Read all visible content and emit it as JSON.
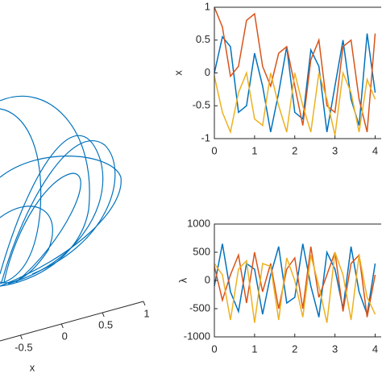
{
  "chart_data": [
    {
      "type": "line3d",
      "xlabel": "x",
      "xlim": [
        -0.75,
        1
      ],
      "xticks": [
        -0.5,
        0,
        0.5,
        1
      ]
    },
    {
      "type": "line",
      "ylabel": "x",
      "x": [
        0,
        0.2,
        0.4,
        0.6,
        0.8,
        1.0,
        1.2,
        1.4,
        1.6,
        1.8,
        2.0,
        2.2,
        2.4,
        2.6,
        2.8,
        3.0,
        3.2,
        3.4,
        3.6,
        3.8,
        4.0
      ],
      "xlim": [
        0,
        4.15
      ],
      "xticks": [
        0,
        1,
        2,
        3,
        4
      ],
      "ylim": [
        -1,
        1
      ],
      "yticks": [
        -1,
        -0.5,
        0,
        0.5,
        1
      ],
      "series": [
        {
          "color": "#0072bd",
          "values": [
            0,
            0.55,
            0.4,
            -0.6,
            -0.5,
            0.3,
            -0.2,
            -0.9,
            -0.3,
            0.4,
            -0.6,
            -0.7,
            0.35,
            0.1,
            -0.9,
            -0.2,
            0.5,
            -0.4,
            -0.8,
            0.6,
            -0.3
          ]
        },
        {
          "color": "#d95319",
          "values": [
            1,
            0.7,
            -0.05,
            0.1,
            0.8,
            0.9,
            0.1,
            -0.2,
            0.3,
            0.4,
            -0.2,
            -0.8,
            0.2,
            0.5,
            -0.5,
            -0.6,
            0.4,
            0.5,
            -0.4,
            -0.9,
            0.6
          ]
        },
        {
          "color": "#edb120",
          "values": [
            -0.05,
            -0.6,
            -0.9,
            -0.3,
            0,
            -0.7,
            -0.8,
            0,
            -0.5,
            -0.9,
            0,
            -0.5,
            -0.9,
            0,
            -0.4,
            -0.95,
            0,
            -0.3,
            -0.9,
            -0.1,
            -0.4
          ]
        }
      ]
    },
    {
      "type": "line",
      "ylabel": "λ",
      "x": [
        0,
        0.2,
        0.4,
        0.6,
        0.8,
        1.0,
        1.2,
        1.4,
        1.6,
        1.8,
        2.0,
        2.2,
        2.4,
        2.6,
        2.8,
        3.0,
        3.2,
        3.4,
        3.6,
        3.8,
        4.0
      ],
      "xlim": [
        0,
        4.15
      ],
      "xticks": [
        0,
        1,
        2,
        3,
        4
      ],
      "ylim": [
        -1000,
        1000
      ],
      "yticks": [
        -1000,
        -500,
        0,
        500,
        1000
      ],
      "series": [
        {
          "color": "#0072bd",
          "values": [
            -100,
            650,
            -200,
            -550,
            300,
            200,
            -600,
            100,
            600,
            -400,
            -300,
            650,
            -100,
            -650,
            500,
            200,
            -500,
            600,
            -200,
            -600,
            300
          ]
        },
        {
          "color": "#d95319",
          "values": [
            250,
            -350,
            100,
            450,
            -400,
            500,
            -200,
            300,
            -500,
            200,
            400,
            -500,
            600,
            -300,
            100,
            500,
            -550,
            300,
            450,
            -650,
            100
          ]
        },
        {
          "color": "#edb120",
          "values": [
            300,
            100,
            -700,
            200,
            350,
            -750,
            300,
            250,
            -700,
            400,
            0,
            -650,
            450,
            -100,
            -750,
            500,
            100,
            -700,
            450,
            -300,
            -600
          ]
        }
      ]
    }
  ]
}
